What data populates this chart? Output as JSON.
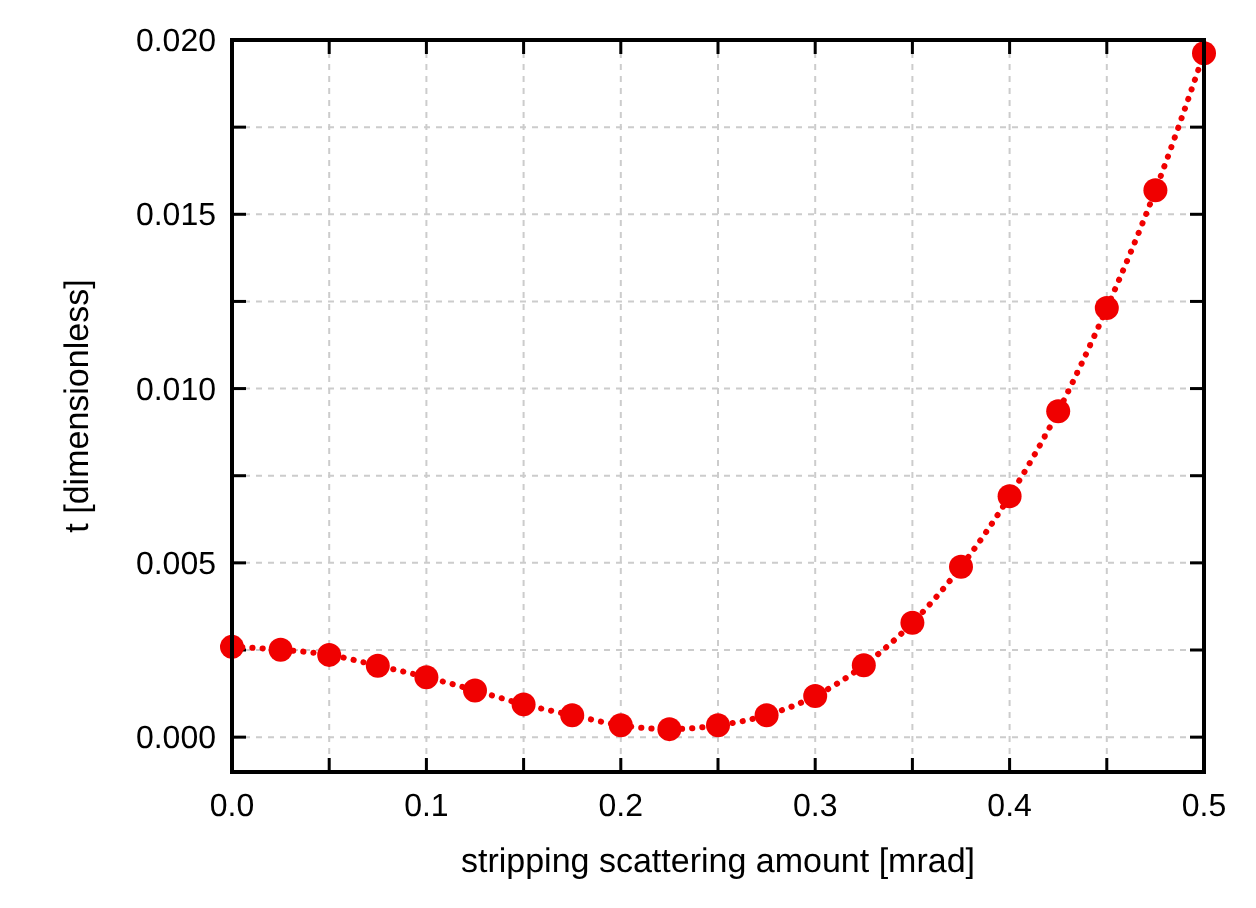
{
  "chart_data": {
    "type": "line",
    "xlabel": "stripping scattering amount [mrad]",
    "ylabel": "t [dimensionless]",
    "x": [
      0,
      0.025,
      0.05,
      0.075,
      0.1,
      0.125,
      0.15,
      0.175,
      0.2,
      0.225,
      0.25,
      0.275,
      0.3,
      0.325,
      0.35,
      0.375,
      0.4,
      0.425,
      0.45,
      0.475,
      0.5
    ],
    "series": [
      {
        "color": "#f00000",
        "values": [
          0.00259,
          0.00251,
          0.00236,
          0.00205,
          0.00172,
          0.00134,
          0.00094,
          0.00063,
          0.00034,
          0.00023,
          0.00034,
          0.00063,
          0.00118,
          0.00206,
          0.00328,
          0.00489,
          0.00691,
          0.00935,
          0.01231,
          0.01569,
          0.01962
        ]
      }
    ],
    "xlim": [
      0,
      0.5
    ],
    "ylim": [
      -0.001,
      0.02
    ],
    "xticks": [
      {
        "value": 0,
        "label": "0.0"
      },
      {
        "value": 0.05,
        "label": null
      },
      {
        "value": 0.1,
        "label": "0.1"
      },
      {
        "value": 0.15,
        "label": null
      },
      {
        "value": 0.2,
        "label": "0.2"
      },
      {
        "value": 0.25,
        "label": null
      },
      {
        "value": 0.3,
        "label": "0.3"
      },
      {
        "value": 0.35,
        "label": null
      },
      {
        "value": 0.4,
        "label": "0.4"
      },
      {
        "value": 0.45,
        "label": null
      },
      {
        "value": 0.5,
        "label": "0.5"
      }
    ],
    "yticks": [
      {
        "value": 0,
        "label": "0.000"
      },
      {
        "value": 0.0025,
        "label": null
      },
      {
        "value": 0.005,
        "label": "0.005"
      },
      {
        "value": 0.0075,
        "label": null
      },
      {
        "value": 0.01,
        "label": "0.010"
      },
      {
        "value": 0.0125,
        "label": null
      },
      {
        "value": 0.015,
        "label": "0.015"
      },
      {
        "value": 0.0175,
        "label": null
      },
      {
        "value": 0.02,
        "label": "0.020"
      }
    ],
    "grid": true,
    "marker": "circle",
    "line_style": "dotted"
  }
}
